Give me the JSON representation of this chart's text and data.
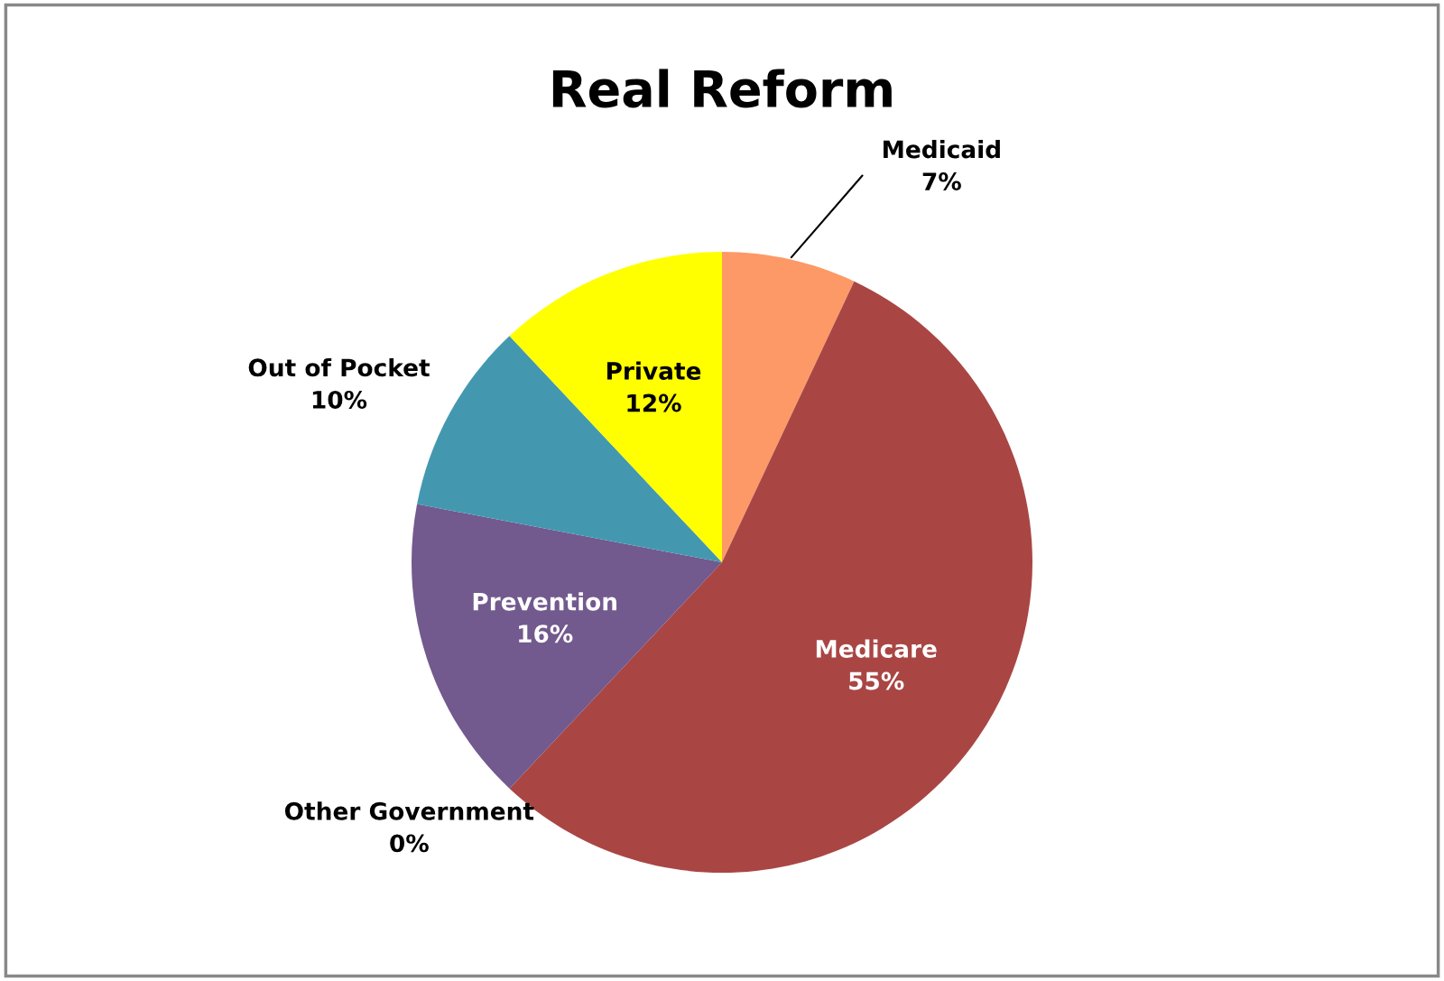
{
  "chart_data": {
    "type": "pie",
    "title": "Real Reform",
    "categories": [
      "Medicaid",
      "Medicare",
      "Other Government",
      "Prevention",
      "Out of Pocket",
      "Private"
    ],
    "values": [
      7,
      55,
      0,
      16,
      10,
      12
    ],
    "value_labels": [
      "7%",
      "55%",
      "0%",
      "16%",
      "10%",
      "12%"
    ],
    "colors": [
      "#fd9966",
      "#a94644",
      "#4f81bd",
      "#72598e",
      "#4398b0",
      "#ffff00"
    ],
    "legend": false
  }
}
